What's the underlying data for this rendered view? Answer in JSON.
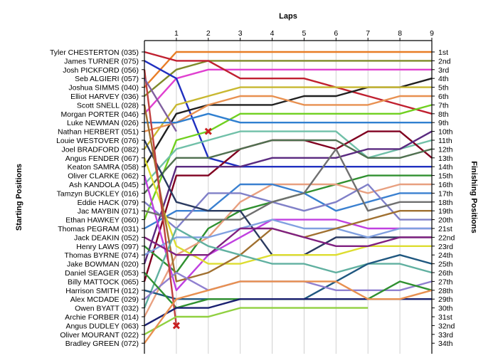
{
  "chart_data": {
    "type": "line",
    "title": "",
    "xlabel": "Laps",
    "ylabel_left": "Starting Positions",
    "ylabel_right": "Finishing Positions",
    "x_ticks": [
      "1",
      "2",
      "3",
      "4",
      "5",
      "6",
      "7",
      "8",
      "9"
    ],
    "x_range": [
      0,
      9
    ],
    "y_range": [
      1,
      34
    ],
    "y_inverted": true,
    "grid": true,
    "legend": "none",
    "drivers": [
      "Tyler CHESTERTON (035)",
      "James TURNER (075)",
      "Josh PICKFORD (056)",
      "Seb ALGIERI (057)",
      "Joshua SIMMS (040)",
      "Elliot HARVEY (036)",
      "Scott SNELL (028)",
      "Morgan PORTER (046)",
      "Luke NEWMAN (026)",
      "Nathan HERBERT (051)",
      "Louie WESTOVER (076)",
      "Joel BRADFORD (082)",
      "Angus FENDER (067)",
      "Keaton SAMRA (058)",
      "Oliver CLARKE (062)",
      "Ash KANDOLA (045)",
      "Tamzyn BUCKLEY (016)",
      "Eddie HACK (079)",
      "Jac MAYBIN (071)",
      "Ethan HAWKEY (060)",
      "Thomas PEGRAM (031)",
      "Jack DEAKIN (052)",
      "Henry LAWS (097)",
      "Thomas BYRNE (074)",
      "Jake BOWMAN (020)",
      "Daniel SEAGER (053)",
      "Billy MATTOCK (065)",
      "Harrison SMITH (012)",
      "Alex MCDADE (029)",
      "Owen BYATT (032)",
      "Archie FORBER (014)",
      "Angus DUDLEY (063)",
      "Oliver MOURANT (022)",
      "Bradley GREEN (072)"
    ],
    "finishing": [
      "1st",
      "2nd",
      "3rd",
      "4th",
      "5th",
      "6th",
      "7th",
      "8th",
      "9th",
      "10th",
      "11th",
      "12th",
      "13th",
      "14th",
      "15th",
      "16th",
      "17th",
      "18th",
      "19th",
      "20th",
      "21st",
      "22nd",
      "23rd",
      "24th",
      "25th",
      "26th",
      "27th",
      "28th",
      "29th",
      "30th",
      "31st",
      "32nd",
      "33rd",
      "34th"
    ],
    "series": [
      {
        "color": "#E87D26",
        "values": [
          5,
          1,
          1,
          1,
          1,
          1,
          1,
          1,
          1,
          1
        ]
      },
      {
        "color": "#7F8A2A",
        "values": [
          6,
          3,
          2,
          2,
          2,
          2,
          2,
          2,
          2,
          2
        ]
      },
      {
        "color": "#E040D0",
        "values": [
          8,
          4,
          3,
          3,
          3,
          3,
          3,
          3,
          3,
          3
        ]
      },
      {
        "color": "#C02030",
        "values": [
          1,
          2,
          2,
          4,
          4,
          4,
          5,
          6,
          7,
          8
        ]
      },
      {
        "color": "#2030C0",
        "values": [
          2,
          4,
          13,
          14,
          14,
          14,
          14,
          14,
          14,
          14
        ]
      },
      {
        "color": "#202020",
        "values": [
          14,
          8,
          7,
          7,
          7,
          6,
          6,
          5,
          5,
          4
        ]
      },
      {
        "color": "#C8B830",
        "values": [
          12,
          7,
          6,
          5,
          5,
          5,
          5,
          5,
          5,
          5
        ]
      },
      {
        "color": "#E89050",
        "values": [
          10,
          9,
          7,
          6,
          6,
          7,
          7,
          7,
          6,
          6
        ]
      },
      {
        "color": "#70D020",
        "values": [
          20,
          11,
          10,
          8,
          8,
          8,
          8,
          8,
          8,
          7
        ]
      },
      {
        "color": "#3080D0",
        "values": [
          9,
          9,
          8,
          9,
          9,
          9,
          9,
          9,
          9,
          9
        ]
      },
      {
        "color": "#70C0A8",
        "values": [
          16,
          12,
          11,
          10,
          10,
          10,
          10,
          13,
          12,
          11
        ]
      },
      {
        "color": "#800020",
        "values": [
          27,
          15,
          15,
          12,
          11,
          11,
          12,
          10,
          10,
          13
        ]
      },
      {
        "color": "#507050",
        "values": [
          17,
          13,
          13,
          12,
          11,
          11,
          11,
          13,
          13,
          12
        ]
      },
      {
        "color": "#5A2A80",
        "values": [
          25,
          14,
          14,
          14,
          13,
          13,
          13,
          12,
          12,
          10
        ]
      },
      {
        "color": "#309030",
        "values": [
          23,
          26,
          21,
          19,
          18,
          17,
          16,
          15,
          15,
          15
        ]
      },
      {
        "color": "#E8A080",
        "values": [
          31,
          24,
          22,
          18,
          16,
          16,
          16,
          17,
          16,
          16
        ]
      },
      {
        "color": "#3A80D0",
        "values": [
          21,
          19,
          19,
          16,
          16,
          17,
          19,
          18,
          17,
          17
        ]
      },
      {
        "color": "#8080C8",
        "values": [
          18,
          21,
          17,
          17,
          18,
          19,
          18,
          16,
          20,
          20
        ]
      },
      {
        "color": "#C040E0",
        "values": [
          15,
          28,
          24,
          22,
          20,
          20,
          20,
          21,
          21,
          21
        ]
      },
      {
        "color": "#707070",
        "values": [
          19,
          20,
          20,
          20,
          18,
          17,
          12,
          19,
          18,
          18
        ]
      },
      {
        "color": "#2A3A60",
        "values": [
          11,
          18,
          19,
          19,
          24,
          24,
          22,
          22,
          22,
          22
        ]
      },
      {
        "color": "#DDDD30",
        "values": [
          13,
          23,
          25,
          25,
          24,
          24,
          24,
          23,
          23,
          23
        ]
      },
      {
        "color": "#80A0E0",
        "values": [
          24,
          22,
          22,
          21,
          20,
          21,
          21,
          22,
          21,
          21
        ]
      },
      {
        "color": "#A07030",
        "values": [
          7,
          27,
          26,
          24,
          21,
          22,
          21,
          20,
          19,
          19
        ]
      },
      {
        "color": "#802080",
        "values": [
          22,
          24,
          24,
          21,
          21,
          22,
          23,
          23,
          22,
          22
        ]
      },
      {
        "color": "#60B0A0",
        "values": [
          30,
          21,
          23,
          24,
          25,
          25,
          26,
          25,
          25,
          26
        ]
      },
      {
        "color": "#205880",
        "values": [
          28,
          29,
          29,
          29,
          29,
          29,
          27,
          25,
          24,
          25
        ]
      },
      {
        "color": "#9080D0",
        "values": [
          29,
          26,
          28,
          27,
          27,
          27,
          28,
          28,
          28,
          27
        ]
      },
      {
        "color": "#309030",
        "values": [
          26,
          30,
          29,
          29,
          29,
          29,
          29,
          29,
          27,
          28
        ]
      },
      {
        "color": "#C04040",
        "values": [
          3,
          32,
          null,
          null,
          null,
          null,
          null,
          null,
          null,
          null
        ]
      },
      {
        "color": "#1A2070",
        "values": [
          32,
          30,
          30,
          29,
          29,
          29,
          29,
          29,
          29,
          29
        ]
      },
      {
        "color": "#90D040",
        "values": [
          33,
          31,
          31,
          30,
          30,
          30,
          30,
          30,
          null,
          null
        ]
      },
      {
        "color": "#E89050",
        "values": [
          34,
          29,
          28,
          27,
          27,
          27,
          27,
          29,
          29,
          28
        ]
      },
      {
        "color": "#8060A0",
        "values": [
          4,
          10,
          null,
          null,
          null,
          null,
          null,
          null,
          null,
          null
        ]
      }
    ],
    "markers": [
      {
        "symbol": "x",
        "color": "#C82020",
        "lap": 1,
        "position": 32
      },
      {
        "symbol": "x",
        "color": "#C82020",
        "lap": 2,
        "position": 10
      }
    ]
  }
}
